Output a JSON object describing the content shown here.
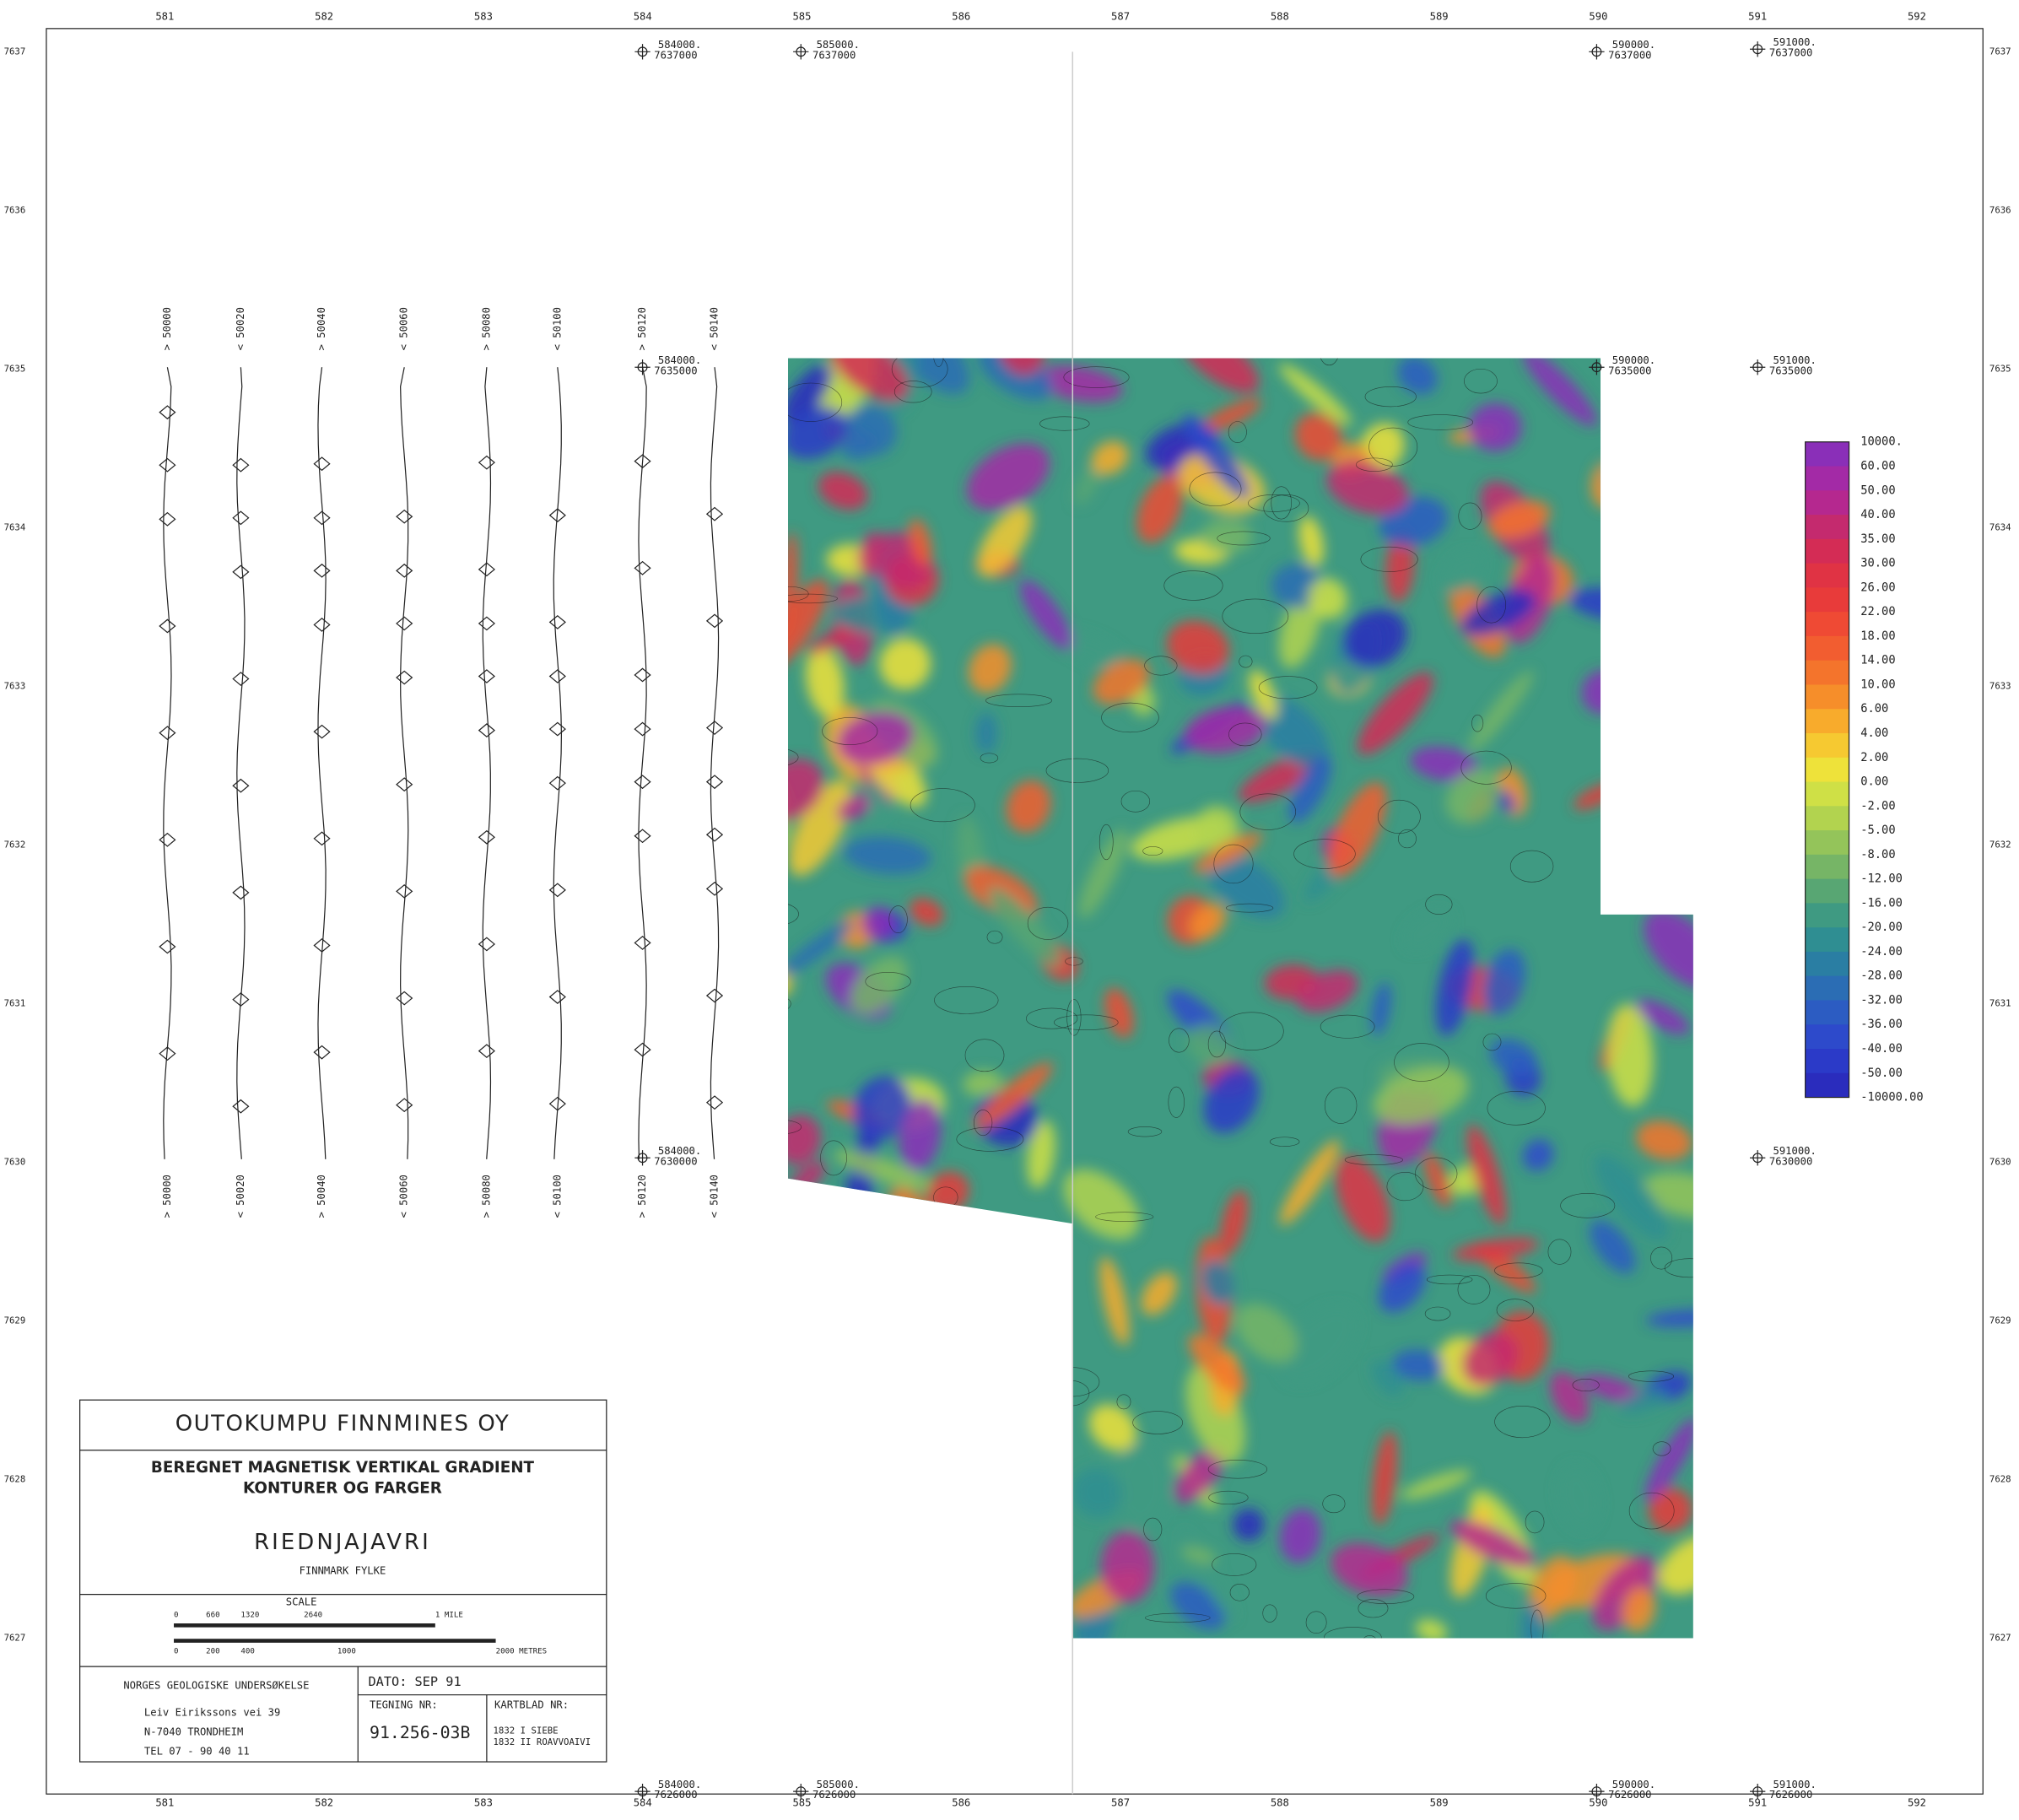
{
  "grid": {
    "eastings": [
      "581",
      "582",
      "583",
      "584",
      "585",
      "586",
      "587",
      "588",
      "589",
      "590",
      "591",
      "592"
    ],
    "northings": [
      "7637",
      "7636",
      "7635",
      "7634",
      "7633",
      "7632",
      "7631",
      "7630",
      "7629",
      "7628",
      "7627"
    ]
  },
  "markers": [
    {
      "easting": "584000.",
      "northing": "7637000"
    },
    {
      "easting": "585000.",
      "northing": "7637000"
    },
    {
      "easting": "590000.",
      "northing": "7637000"
    },
    {
      "easting": "591000.",
      "northing": "7637000"
    },
    {
      "easting": "584000.",
      "northing": "7635000"
    },
    {
      "easting": "590000.",
      "northing": "7635000"
    },
    {
      "easting": "591000.",
      "northing": "7635000"
    },
    {
      "easting": "584000.",
      "northing": "7630000"
    },
    {
      "easting": "591000.",
      "northing": "7630000"
    },
    {
      "easting": "584000.",
      "northing": "7626000"
    },
    {
      "easting": "585000.",
      "northing": "7626000"
    },
    {
      "easting": "590000.",
      "northing": "7626000"
    },
    {
      "easting": "591000.",
      "northing": "7626000"
    }
  ],
  "profiles": {
    "top": [
      "> 50000",
      "< 50020",
      "> 50040",
      "< 50060",
      "> 50080",
      "< 50100",
      "> 50120",
      "< 50140"
    ],
    "bottom": [
      "> 50000",
      "< 50020",
      "> 50040",
      "< 50060",
      "> 50080",
      "< 50100",
      "> 50120",
      "< 50140"
    ]
  },
  "legend": {
    "labels": [
      "10000.",
      "60.00",
      "50.00",
      "40.00",
      "35.00",
      "30.00",
      "26.00",
      "22.00",
      "18.00",
      "14.00",
      "10.00",
      "6.00",
      "4.00",
      "2.00",
      "0.00",
      "-2.00",
      "-5.00",
      "-8.00",
      "-12.00",
      "-16.00",
      "-20.00",
      "-24.00",
      "-28.00",
      "-32.00",
      "-36.00",
      "-40.00",
      "-50.00",
      "-10000.00"
    ],
    "colors": [
      "#8a2fb8",
      "#a32aa6",
      "#b5288f",
      "#c42a6e",
      "#d42c55",
      "#e03344",
      "#e83b3a",
      "#ef4a34",
      "#f25d30",
      "#f4742c",
      "#f68e2a",
      "#f8ab2c",
      "#f6c931",
      "#eee23a",
      "#cfe046",
      "#b2d34f",
      "#94c45a",
      "#76b566",
      "#58a673",
      "#3f9a82",
      "#2f8e92",
      "#2a7ea3",
      "#2b6db4",
      "#2c5cc2",
      "#2d4acb",
      "#2b3ac8",
      "#2a2cbd"
    ]
  },
  "title_block": {
    "company": "OUTOKUMPU FINNMINES OY",
    "subtitle_1": "BEREGNET MAGNETISK VERTIKAL GRADIENT",
    "subtitle_2": "KONTURER OG FARGER",
    "area": "RIEDNJAJAVRI",
    "county": "FINNMARK FYLKE",
    "scale": "SCALE",
    "miles": [
      "0",
      "660",
      "1320",
      "2640",
      "1 MILE"
    ],
    "metres": [
      "0",
      "200",
      "400",
      "1000",
      "2000 METRES"
    ],
    "institution": "NORGES GEOLOGISKE UNDERSØKELSE",
    "address_1": "Leiv Eirikssons vei 39",
    "address_2": "N-7040   TRONDHEIM",
    "phone": "TEL  07 - 90 40 11",
    "date": "DATO: SEP 91",
    "drawing_label": "TEGNING NR:",
    "drawing_no": "91.256-03B",
    "sheet_label": "KARTBLAD NR:",
    "sheet_1": "1832  I  SIEBE",
    "sheet_2": "1832 II  ROAVVOAIVI"
  }
}
